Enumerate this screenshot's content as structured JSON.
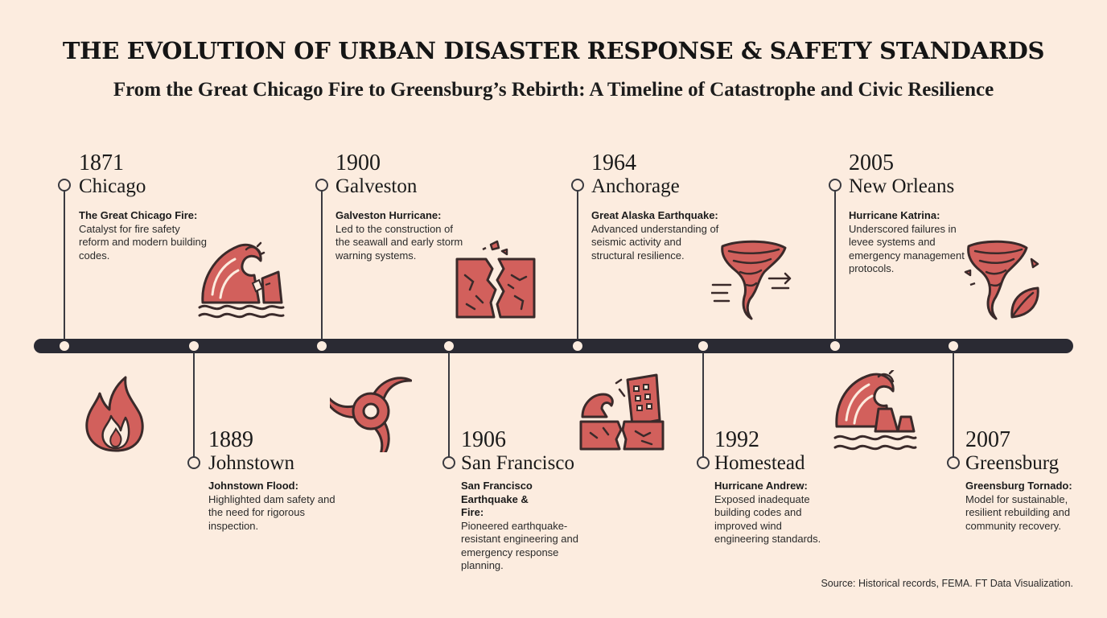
{
  "title": "THE EVOLUTION OF URBAN DISASTER RESPONSE & SAFETY STANDARDS",
  "subtitle": "From the Great Chicago Fire to Greensburg’s Rebirth: A Timeline of Catastrophe and Civic Resilience",
  "events": [
    {
      "year": "1871",
      "place": "Chicago",
      "name": "The Great Chicago Fire:",
      "desc": "Catalyst for fire safety reform and modern building codes.",
      "icon": "fire-icon"
    },
    {
      "year": "1889",
      "place": "Johnstown",
      "name": "Johnstown Flood:",
      "desc": "Highlighted dam safety and the need for rigorous inspection.",
      "icon": "wave-dam-icon"
    },
    {
      "year": "1900",
      "place": "Galveston",
      "name": "Galveston Hurricane:",
      "desc": "Led to the construction of the seawall and early storm warning systems.",
      "icon": "hurricane-icon"
    },
    {
      "year": "1906",
      "place": "San Francisco",
      "name": "San Francisco Earthquake & Fire:",
      "desc": "Pioneered earthquake-resistant engineering and emergency response planning.",
      "icon": "earthquake-crack-icon"
    },
    {
      "year": "1964",
      "place": "Anchorage",
      "name": "Great Alaska Earthquake:",
      "desc": "Advanced understanding of seismic activity and structural resilience.",
      "icon": "collapsing-building-icon"
    },
    {
      "year": "1992",
      "place": "Homestead",
      "name": "Hurricane Andrew:",
      "desc": "Exposed inadequate building codes and improved wind engineering standards.",
      "icon": "tornado-wind-icon"
    },
    {
      "year": "2005",
      "place": "New Orleans",
      "name": "Hurricane Katrina:",
      "desc": "Underscored failures in levee systems and emergency management protocols.",
      "icon": "wave-levee-icon"
    },
    {
      "year": "2007",
      "place": "Greensburg",
      "name": "Greensburg Tornado:",
      "desc": "Model for sustainable, resilient rebuilding and community recovery.",
      "icon": "tornado-leaf-icon"
    }
  ],
  "source": "Source: Historical records, FEMA. FT Data Visualization.",
  "colors": {
    "accent": "#d2605c",
    "outline": "#3a2a2a",
    "axis": "#2a2a33",
    "background": "#fcecdf"
  }
}
